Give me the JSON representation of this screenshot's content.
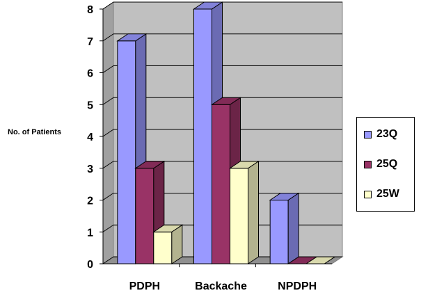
{
  "chart_data": {
    "type": "bar",
    "ylabel": "No. of Patients",
    "categories": [
      "PDPH",
      "Backache",
      "NPDPH"
    ],
    "ylim": [
      0,
      8
    ],
    "yticks": [
      "0",
      "1",
      "2",
      "3",
      "4",
      "5",
      "6",
      "7",
      "8"
    ],
    "series": [
      {
        "name": "23Q",
        "values": [
          7,
          8,
          2
        ],
        "color": "#9999ff"
      },
      {
        "name": "25Q",
        "values": [
          3,
          5,
          0
        ],
        "color": "#993366"
      },
      {
        "name": "25W",
        "values": [
          1,
          3,
          0
        ],
        "color": "#ffffcc"
      }
    ],
    "grid": true,
    "legend": "right",
    "panel_color": "#c0c0c0"
  }
}
